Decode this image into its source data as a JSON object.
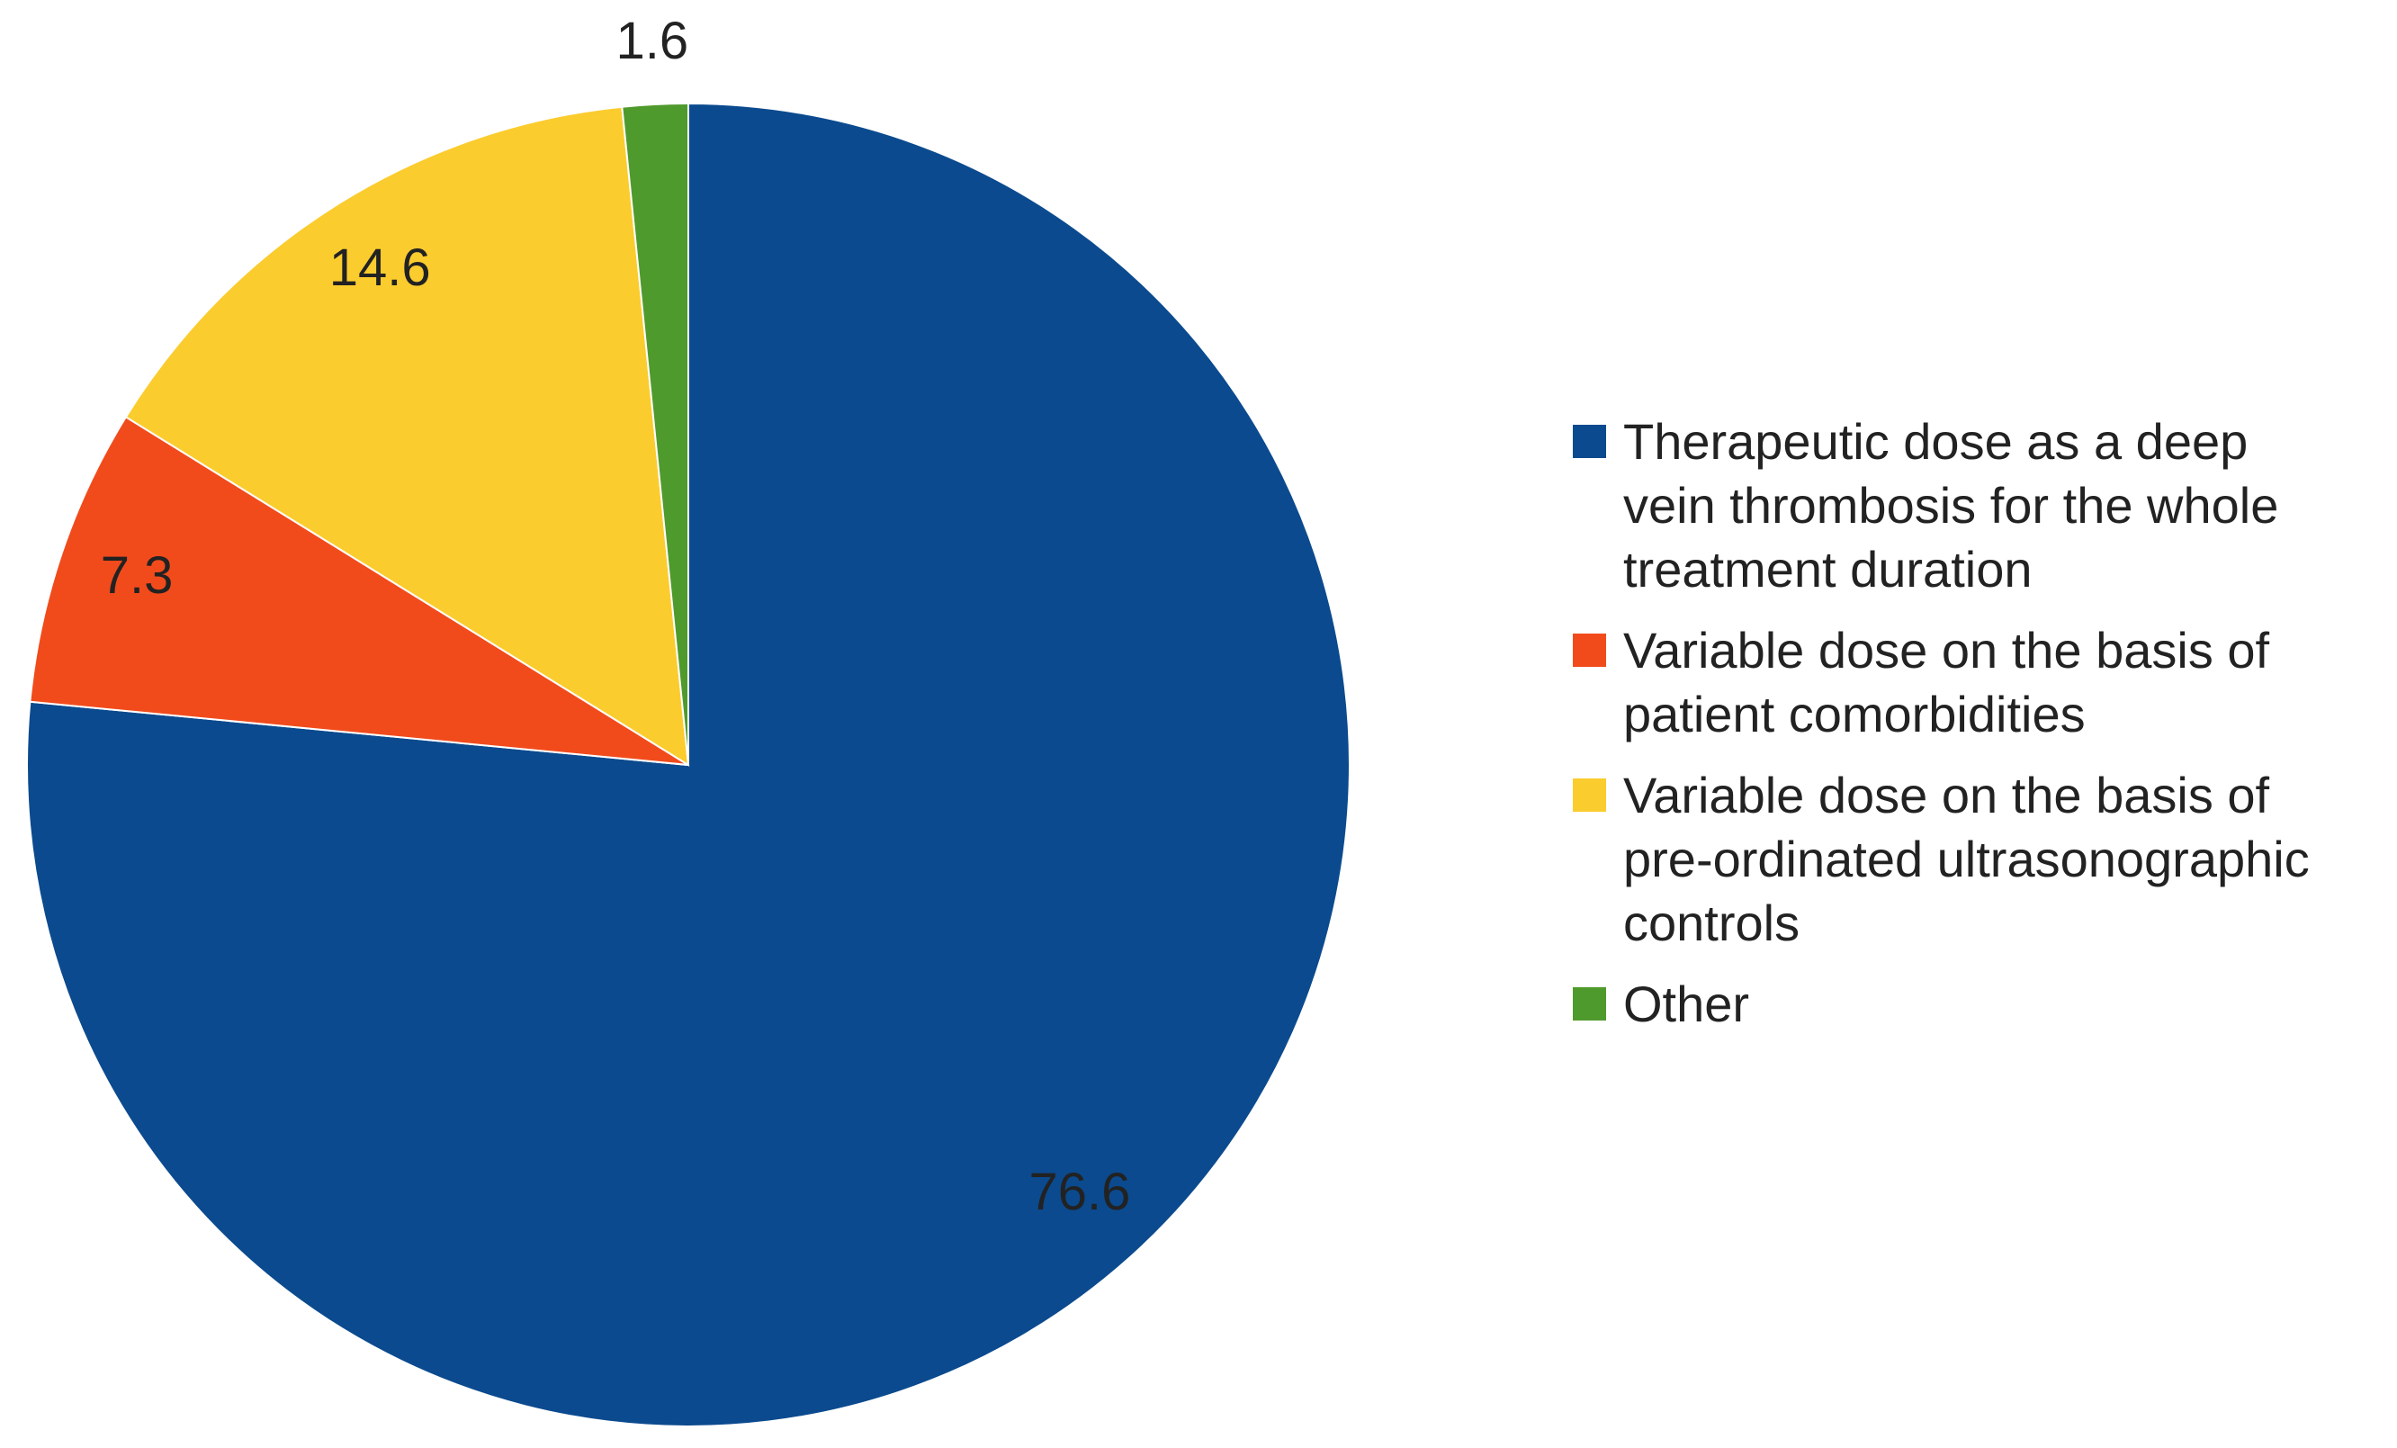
{
  "chart_data": {
    "type": "pie",
    "categories": [
      "Therapeutic dose as a deep vein thrombosis for the whole treatment duration",
      "Variable dose on the basis of patient comorbidities",
      "Variable dose on the basis of pre-ordinated ultrasonographic controls",
      "Other"
    ],
    "values": [
      76.6,
      7.3,
      14.6,
      1.6
    ],
    "colors": [
      "#0b4a8e",
      "#f14b1c",
      "#fbcc2e",
      "#4f9a2c"
    ],
    "legend": "right"
  }
}
